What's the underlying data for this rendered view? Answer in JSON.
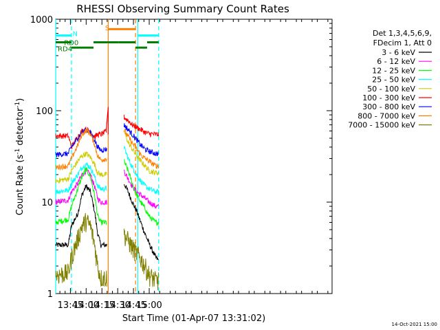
{
  "chart_data": {
    "type": "line",
    "title": "RHESSI Observing Summary Count Rates",
    "xlabel": "Start Time (01-Apr-07 13:31:02)",
    "ylabel": "Count Rate (s",
    "ylabel_sup": "-1",
    "ylabel_tail": " detector",
    "ylabel_sup2": "-1",
    "ylabel_close": ")",
    "y_scale": "log",
    "ylim": [
      1,
      1000
    ],
    "xlim_minutes": [
      811,
      1074
    ],
    "x_ticks": [
      {
        "label": "13:45",
        "minute": 825
      },
      {
        "label": "14:00",
        "minute": 840
      },
      {
        "label": "14:15",
        "minute": 855
      },
      {
        "label": "14:30",
        "minute": 870
      },
      {
        "label": "14:45",
        "minute": 885
      },
      {
        "label": "15:00",
        "minute": 900
      }
    ],
    "y_ticks": [
      {
        "label": "1",
        "value": 1
      },
      {
        "label": "10",
        "value": 10
      },
      {
        "label": "100",
        "value": 100
      },
      {
        "label": "1000",
        "value": 1000
      }
    ],
    "legend": {
      "placement": "right",
      "header": [
        "Det 1,3,4,5,6,9,",
        "FDecim 1, Att 0"
      ]
    },
    "series": [
      {
        "name": "3 - 6 keV",
        "color": "#000000",
        "day1": [
          [
            811,
            3.4
          ],
          [
            823,
            3.4
          ],
          [
            826,
            5.5
          ],
          [
            832,
            7.5
          ],
          [
            836,
            12
          ],
          [
            840,
            15
          ],
          [
            844,
            13
          ],
          [
            848,
            8
          ],
          [
            851,
            4.5
          ],
          [
            854,
            3.4
          ],
          [
            860,
            3.4
          ]
        ],
        "day2": [
          [
            876,
            16
          ],
          [
            880,
            13
          ],
          [
            884,
            10
          ],
          [
            888,
            8
          ],
          [
            892,
            6
          ],
          [
            896,
            4.5
          ],
          [
            900,
            3.5
          ],
          [
            906,
            2.5
          ],
          [
            909,
            2.3
          ]
        ]
      },
      {
        "name": "6 - 12 keV",
        "color": "#ff00ff",
        "day1": [
          [
            811,
            10
          ],
          [
            823,
            10.5
          ],
          [
            826,
            13
          ],
          [
            832,
            16
          ],
          [
            836,
            20
          ],
          [
            840,
            22
          ],
          [
            844,
            20
          ],
          [
            848,
            15
          ],
          [
            851,
            11
          ],
          [
            854,
            10
          ],
          [
            860,
            10
          ]
        ],
        "day2": [
          [
            876,
            22
          ],
          [
            880,
            18
          ],
          [
            884,
            15
          ],
          [
            888,
            13
          ],
          [
            892,
            12
          ],
          [
            896,
            11
          ],
          [
            900,
            10
          ],
          [
            906,
            9
          ],
          [
            909,
            9
          ]
        ]
      },
      {
        "name": "12 - 25 keV",
        "color": "#00ff00",
        "day1": [
          [
            811,
            6
          ],
          [
            823,
            6.5
          ],
          [
            826,
            9
          ],
          [
            832,
            14
          ],
          [
            836,
            19
          ],
          [
            840,
            23
          ],
          [
            844,
            19
          ],
          [
            848,
            12
          ],
          [
            851,
            7
          ],
          [
            854,
            6
          ],
          [
            860,
            6
          ]
        ],
        "day2": [
          [
            876,
            28
          ],
          [
            880,
            22
          ],
          [
            884,
            16
          ],
          [
            888,
            12
          ],
          [
            892,
            10
          ],
          [
            896,
            8.5
          ],
          [
            900,
            7
          ],
          [
            906,
            6
          ],
          [
            909,
            6
          ]
        ]
      },
      {
        "name": "25 - 50 keV",
        "color": "#00ffff",
        "day1": [
          [
            811,
            13
          ],
          [
            823,
            13.5
          ],
          [
            826,
            16
          ],
          [
            832,
            20
          ],
          [
            836,
            24
          ],
          [
            840,
            26
          ],
          [
            844,
            24
          ],
          [
            848,
            19
          ],
          [
            851,
            15
          ],
          [
            854,
            14
          ],
          [
            860,
            14
          ]
        ],
        "day2": [
          [
            876,
            40
          ],
          [
            880,
            30
          ],
          [
            884,
            24
          ],
          [
            888,
            20
          ],
          [
            892,
            17
          ],
          [
            896,
            15
          ],
          [
            900,
            14
          ],
          [
            906,
            13
          ],
          [
            909,
            13
          ]
        ]
      },
      {
        "name": "50 - 100 keV",
        "color": "#cccc00",
        "day1": [
          [
            811,
            17
          ],
          [
            823,
            18
          ],
          [
            826,
            22
          ],
          [
            832,
            28
          ],
          [
            836,
            32
          ],
          [
            840,
            34
          ],
          [
            844,
            31
          ],
          [
            848,
            26
          ],
          [
            851,
            21
          ],
          [
            854,
            20
          ],
          [
            860,
            20
          ]
        ],
        "day2": [
          [
            876,
            60
          ],
          [
            880,
            45
          ],
          [
            884,
            38
          ],
          [
            888,
            32
          ],
          [
            892,
            28
          ],
          [
            896,
            25
          ],
          [
            900,
            22
          ],
          [
            906,
            21
          ],
          [
            909,
            21
          ]
        ]
      },
      {
        "name": "100 - 300 keV",
        "color": "#ff0000",
        "day1": [
          [
            811,
            53
          ],
          [
            823,
            53
          ],
          [
            826,
            40
          ],
          [
            832,
            52
          ],
          [
            836,
            60
          ],
          [
            840,
            63
          ],
          [
            844,
            58
          ],
          [
            848,
            52
          ],
          [
            851,
            55
          ],
          [
            854,
            55
          ],
          [
            860,
            60
          ]
        ],
        "day2": [
          [
            876,
            85
          ],
          [
            880,
            78
          ],
          [
            884,
            70
          ],
          [
            888,
            66
          ],
          [
            892,
            62
          ],
          [
            896,
            58
          ],
          [
            900,
            56
          ],
          [
            906,
            55
          ],
          [
            909,
            55
          ]
        ]
      },
      {
        "name": "300 - 800 keV",
        "color": "#0000ff",
        "day1": [
          [
            811,
            33
          ],
          [
            823,
            34
          ],
          [
            826,
            40
          ],
          [
            832,
            50
          ],
          [
            836,
            58
          ],
          [
            840,
            62
          ],
          [
            844,
            58
          ],
          [
            848,
            48
          ],
          [
            851,
            40
          ],
          [
            854,
            37
          ],
          [
            860,
            38
          ]
        ],
        "day2": [
          [
            876,
            70
          ],
          [
            880,
            62
          ],
          [
            884,
            55
          ],
          [
            888,
            48
          ],
          [
            892,
            42
          ],
          [
            896,
            38
          ],
          [
            900,
            36
          ],
          [
            906,
            34
          ],
          [
            909,
            34
          ]
        ]
      },
      {
        "name": "800 - 7000 keV",
        "color": "#ff7f00",
        "day1": [
          [
            811,
            24
          ],
          [
            823,
            25
          ],
          [
            826,
            30
          ],
          [
            832,
            42
          ],
          [
            836,
            55
          ],
          [
            840,
            61
          ],
          [
            844,
            56
          ],
          [
            848,
            43
          ],
          [
            851,
            32
          ],
          [
            854,
            29
          ],
          [
            860,
            30
          ]
        ],
        "day2": [
          [
            876,
            62
          ],
          [
            880,
            52
          ],
          [
            884,
            44
          ],
          [
            888,
            38
          ],
          [
            892,
            33
          ],
          [
            896,
            30
          ],
          [
            900,
            28
          ],
          [
            906,
            25
          ],
          [
            909,
            25
          ]
        ]
      },
      {
        "name": "7000 - 15000 keV",
        "color": "#808000",
        "day1": [
          [
            811,
            1.6
          ],
          [
            823,
            1.7
          ],
          [
            826,
            2.5
          ],
          [
            832,
            4
          ],
          [
            836,
            5.5
          ],
          [
            840,
            6.3
          ],
          [
            844,
            5.5
          ],
          [
            848,
            3.5
          ],
          [
            851,
            2
          ],
          [
            854,
            1.5
          ],
          [
            860,
            1.5
          ]
        ],
        "day2": [
          [
            876,
            4.5
          ],
          [
            880,
            3.8
          ],
          [
            884,
            3.2
          ],
          [
            888,
            2.8
          ],
          [
            892,
            2.4
          ],
          [
            896,
            2.0
          ],
          [
            900,
            1.6
          ],
          [
            906,
            1.4
          ],
          [
            909,
            1.4
          ]
        ]
      }
    ],
    "spike": {
      "minute": 861,
      "value": 110
    },
    "markers": [
      {
        "kind": "solid",
        "color": "#00ffff",
        "minute": 811
      },
      {
        "kind": "dashed",
        "color": "#00ffff",
        "minute": 826
      },
      {
        "kind": "solid",
        "color": "#ff7f00",
        "minute": 861
      },
      {
        "kind": "dashed",
        "color": "#ff7f00",
        "minute": 887
      },
      {
        "kind": "solid",
        "color": "#00ffff",
        "minute": 889
      },
      {
        "kind": "dashed",
        "color": "#00ffff",
        "minute": 909
      }
    ],
    "bars": [
      {
        "color": "#00ffff",
        "y_value": 665,
        "from": 811,
        "to": 826
      },
      {
        "color": "#00ffff",
        "y_value": 665,
        "from": 889,
        "to": 909
      },
      {
        "color": "#ff7f00",
        "y_value": 780,
        "from": 861,
        "to": 887
      },
      {
        "color": "#008000",
        "y_value": 560,
        "from": 811,
        "to": 826
      },
      {
        "color": "#008000",
        "y_value": 490,
        "from": 826,
        "to": 847
      },
      {
        "color": "#008000",
        "y_value": 560,
        "from": 847,
        "to": 871
      },
      {
        "color": "#008000",
        "y_value": 560,
        "from": 871,
        "to": 887
      },
      {
        "color": "#008000",
        "y_value": 490,
        "from": 887,
        "to": 898
      },
      {
        "color": "#008000",
        "y_value": 560,
        "from": 898,
        "to": 909
      }
    ],
    "bar_labels": [
      {
        "text": "N",
        "color": "#00ffff",
        "minute": 827,
        "y_value": 700
      },
      {
        "text": "S",
        "color": "#ff7f00",
        "minute": 858,
        "y_value": 810
      },
      {
        "text": "RD0",
        "color": "#008000",
        "minute": 819,
        "y_value": 560
      },
      {
        "text": "RD4",
        "color": "#008000",
        "minute": 813,
        "y_value": 480
      }
    ]
  },
  "footer": {
    "timestamp": "14-Oct-2021 15:00"
  }
}
